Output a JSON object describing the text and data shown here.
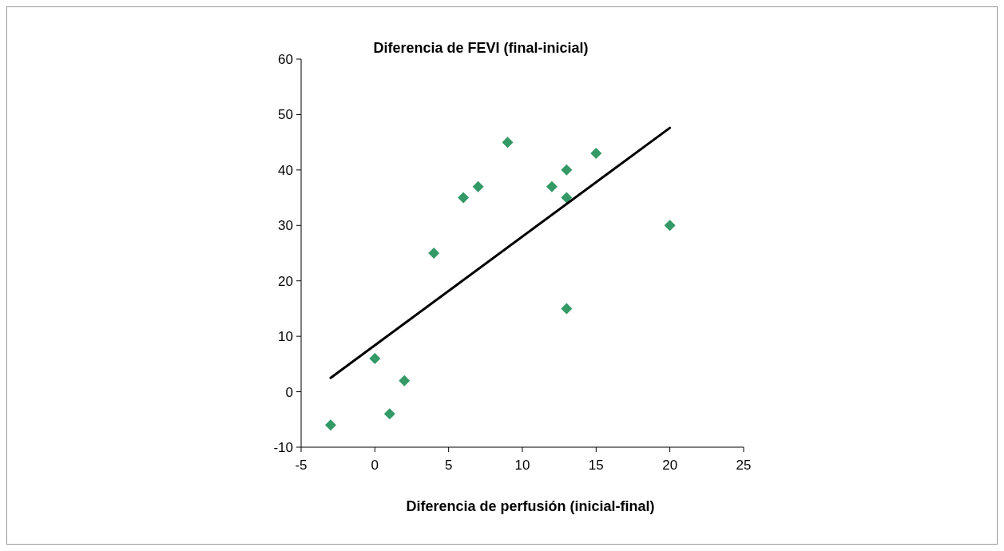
{
  "chart_data": {
    "type": "scatter",
    "title": "Diferencia de FEVI (final-inicial)",
    "xlabel": "Diferencia de perfusión (inicial-final)",
    "xlim": [
      -5,
      25
    ],
    "xticks": [
      -5,
      0,
      5,
      10,
      15,
      20,
      25
    ],
    "ylim": [
      -10,
      60
    ],
    "yticks": [
      -10,
      0,
      10,
      20,
      30,
      40,
      50,
      60
    ],
    "grid": false,
    "marker": "diamond",
    "series": [
      {
        "color": "#339966",
        "x": [
          -3,
          0,
          1,
          2,
          4,
          6,
          7,
          9,
          12,
          13,
          13,
          13,
          15,
          20
        ],
        "values": [
          -6,
          6,
          -4,
          2,
          25,
          35,
          37,
          45,
          37,
          40,
          35,
          15,
          43,
          30
        ]
      },
      {
        "type": "line",
        "marker": "none",
        "color": "#000000",
        "x": [
          -3,
          20
        ],
        "values": [
          2.5,
          47.6
        ]
      }
    ]
  }
}
